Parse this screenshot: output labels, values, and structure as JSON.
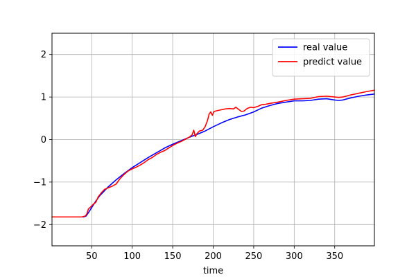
{
  "chart_data": {
    "type": "line",
    "title": "",
    "xlabel": "time",
    "ylabel": "",
    "xlim": [
      1,
      399
    ],
    "ylim": [
      -2.5,
      2.5
    ],
    "x_ticks": [
      50,
      100,
      150,
      200,
      250,
      300,
      350
    ],
    "y_ticks": [
      -2,
      -1,
      0,
      1,
      2
    ],
    "x_tick_labels": [
      "50",
      "100",
      "150",
      "200",
      "250",
      "300",
      "350"
    ],
    "y_tick_labels": [
      "−2",
      "−1",
      "0",
      "1",
      "2"
    ],
    "grid": true,
    "legend_position": "top-right",
    "series": [
      {
        "name": "real value",
        "color": "#0000ff",
        "points": [
          [
            1,
            -1.82
          ],
          [
            20,
            -1.82
          ],
          [
            40,
            -1.82
          ],
          [
            43,
            -1.8
          ],
          [
            46,
            -1.72
          ],
          [
            50,
            -1.6
          ],
          [
            55,
            -1.45
          ],
          [
            60,
            -1.32
          ],
          [
            70,
            -1.12
          ],
          [
            80,
            -0.95
          ],
          [
            90,
            -0.8
          ],
          [
            100,
            -0.66
          ],
          [
            110,
            -0.54
          ],
          [
            120,
            -0.42
          ],
          [
            130,
            -0.31
          ],
          [
            140,
            -0.2
          ],
          [
            150,
            -0.11
          ],
          [
            160,
            -0.03
          ],
          [
            170,
            0.05
          ],
          [
            180,
            0.12
          ],
          [
            190,
            0.2
          ],
          [
            200,
            0.3
          ],
          [
            210,
            0.39
          ],
          [
            220,
            0.47
          ],
          [
            230,
            0.53
          ],
          [
            240,
            0.58
          ],
          [
            250,
            0.65
          ],
          [
            260,
            0.74
          ],
          [
            270,
            0.8
          ],
          [
            280,
            0.85
          ],
          [
            290,
            0.88
          ],
          [
            300,
            0.91
          ],
          [
            310,
            0.91
          ],
          [
            320,
            0.92
          ],
          [
            330,
            0.95
          ],
          [
            340,
            0.96
          ],
          [
            350,
            0.93
          ],
          [
            355,
            0.92
          ],
          [
            360,
            0.93
          ],
          [
            370,
            0.98
          ],
          [
            380,
            1.02
          ],
          [
            390,
            1.05
          ],
          [
            399,
            1.07
          ]
        ]
      },
      {
        "name": "predict value",
        "color": "#ff0000",
        "points": [
          [
            1,
            -1.82
          ],
          [
            20,
            -1.82
          ],
          [
            38,
            -1.82
          ],
          [
            42,
            -1.8
          ],
          [
            44,
            -1.75
          ],
          [
            46,
            -1.63
          ],
          [
            48,
            -1.6
          ],
          [
            52,
            -1.52
          ],
          [
            55,
            -1.48
          ],
          [
            58,
            -1.35
          ],
          [
            62,
            -1.25
          ],
          [
            66,
            -1.17
          ],
          [
            70,
            -1.14
          ],
          [
            75,
            -1.1
          ],
          [
            80,
            -1.05
          ],
          [
            85,
            -0.92
          ],
          [
            90,
            -0.82
          ],
          [
            95,
            -0.74
          ],
          [
            100,
            -0.69
          ],
          [
            105,
            -0.65
          ],
          [
            110,
            -0.6
          ],
          [
            115,
            -0.54
          ],
          [
            120,
            -0.47
          ],
          [
            125,
            -0.42
          ],
          [
            130,
            -0.35
          ],
          [
            135,
            -0.3
          ],
          [
            140,
            -0.26
          ],
          [
            145,
            -0.2
          ],
          [
            150,
            -0.14
          ],
          [
            155,
            -0.09
          ],
          [
            160,
            -0.05
          ],
          [
            165,
            0.0
          ],
          [
            170,
            0.05
          ],
          [
            174,
            0.11
          ],
          [
            176,
            0.22
          ],
          [
            178,
            0.07
          ],
          [
            180,
            0.14
          ],
          [
            183,
            0.2
          ],
          [
            187,
            0.22
          ],
          [
            190,
            0.3
          ],
          [
            193,
            0.45
          ],
          [
            195,
            0.6
          ],
          [
            197,
            0.65
          ],
          [
            199,
            0.57
          ],
          [
            201,
            0.66
          ],
          [
            205,
            0.68
          ],
          [
            210,
            0.7
          ],
          [
            215,
            0.72
          ],
          [
            220,
            0.73
          ],
          [
            225,
            0.72
          ],
          [
            228,
            0.76
          ],
          [
            232,
            0.7
          ],
          [
            235,
            0.66
          ],
          [
            238,
            0.67
          ],
          [
            242,
            0.73
          ],
          [
            246,
            0.76
          ],
          [
            250,
            0.75
          ],
          [
            255,
            0.78
          ],
          [
            260,
            0.82
          ],
          [
            265,
            0.83
          ],
          [
            270,
            0.85
          ],
          [
            280,
            0.88
          ],
          [
            290,
            0.92
          ],
          [
            300,
            0.95
          ],
          [
            310,
            0.96
          ],
          [
            320,
            0.97
          ],
          [
            330,
            1.01
          ],
          [
            340,
            1.02
          ],
          [
            350,
            1.0
          ],
          [
            355,
            0.99
          ],
          [
            360,
            1.0
          ],
          [
            370,
            1.05
          ],
          [
            380,
            1.09
          ],
          [
            390,
            1.13
          ],
          [
            399,
            1.16
          ]
        ]
      }
    ]
  }
}
